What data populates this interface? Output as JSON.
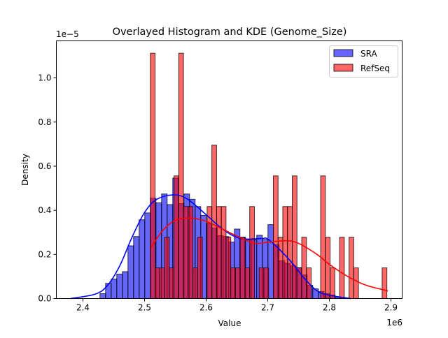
{
  "chart_data": {
    "type": "bar",
    "title": "Overlayed Histogram and KDE (Genome_Size)",
    "xlabel": "Value",
    "ylabel": "Density",
    "x_offset_text": "1e6",
    "y_offset_text": "1e−5",
    "xlim": [
      2.3568,
      2.9182
    ],
    "ylim": [
      0,
      1.168
    ],
    "xticks": [
      2.4,
      2.5,
      2.6,
      2.7,
      2.8,
      2.9
    ],
    "xtick_labels": [
      "2.4",
      "2.5",
      "2.6",
      "2.7",
      "2.8",
      "2.9"
    ],
    "yticks": [
      0.0,
      0.2,
      0.4,
      0.6,
      0.8,
      1.0
    ],
    "ytick_labels": [
      "0.0",
      "0.2",
      "0.4",
      "0.6",
      "0.8",
      "1.0"
    ],
    "grid": false,
    "legend_placement": "top-right",
    "series": [
      {
        "name": "SRA",
        "color": "#0000ff",
        "bin_start": 2.4276,
        "bin_width": 0.00909,
        "values": [
          0.022,
          0.069,
          0.088,
          0.111,
          0.122,
          0.239,
          0.281,
          0.357,
          0.388,
          0.455,
          0.434,
          0.474,
          0.426,
          0.546,
          0.43,
          0.474,
          0.45,
          0.417,
          0.377,
          0.34,
          0.32,
          0.285,
          0.281,
          0.256,
          0.315,
          0.278,
          0.266,
          0.266,
          0.287,
          0.268,
          0.335,
          0.244,
          0.171,
          0.16,
          0.148,
          0.14,
          0.107,
          0.06,
          0.044,
          0.032,
          0.022,
          0.016,
          0.006,
          0.004
        ],
        "kde": [
          [
            2.38,
            0.0
          ],
          [
            2.42,
            0.02
          ],
          [
            2.44,
            0.06
          ],
          [
            2.46,
            0.15
          ],
          [
            2.48,
            0.28
          ],
          [
            2.5,
            0.39
          ],
          [
            2.52,
            0.45
          ],
          [
            2.548,
            0.47
          ],
          [
            2.57,
            0.45
          ],
          [
            2.6,
            0.38
          ],
          [
            2.62,
            0.33
          ],
          [
            2.64,
            0.29
          ],
          [
            2.66,
            0.27
          ],
          [
            2.69,
            0.272
          ],
          [
            2.7,
            0.27
          ],
          [
            2.72,
            0.22
          ],
          [
            2.74,
            0.16
          ],
          [
            2.76,
            0.09
          ],
          [
            2.78,
            0.035
          ],
          [
            2.8,
            0.015
          ],
          [
            2.835,
            0.0
          ]
        ]
      },
      {
        "name": "RefSeq",
        "color": "#ff0000",
        "bin_start": 2.5094,
        "bin_width": 0.00768,
        "values": [
          1.112,
          0.139,
          0.139,
          0.278,
          0.139,
          0.556,
          1.112,
          0.417,
          0.417,
          0.139,
          0.278,
          0,
          0.417,
          0.695,
          0.417,
          0.417,
          0.278,
          0.139,
          0.139,
          0.278,
          0.139,
          0.417,
          0,
          0.139,
          0.139,
          0,
          0.556,
          0.278,
          0.417,
          0.417,
          0.556,
          0.139,
          0.278,
          0.139,
          0,
          0,
          0.556,
          0.278,
          0.139,
          0,
          0.278,
          0,
          0.278,
          0.139,
          0,
          0,
          0,
          0,
          0,
          0.139
        ],
        "kde": [
          [
            2.51,
            0.23
          ],
          [
            2.53,
            0.31
          ],
          [
            2.55,
            0.355
          ],
          [
            2.575,
            0.365
          ],
          [
            2.6,
            0.35
          ],
          [
            2.63,
            0.31
          ],
          [
            2.66,
            0.27
          ],
          [
            2.68,
            0.25
          ],
          [
            2.7,
            0.255
          ],
          [
            2.73,
            0.262
          ],
          [
            2.75,
            0.25
          ],
          [
            2.78,
            0.2
          ],
          [
            2.8,
            0.155
          ],
          [
            2.83,
            0.1
          ],
          [
            2.86,
            0.06
          ],
          [
            2.895,
            0.035
          ]
        ]
      }
    ]
  }
}
